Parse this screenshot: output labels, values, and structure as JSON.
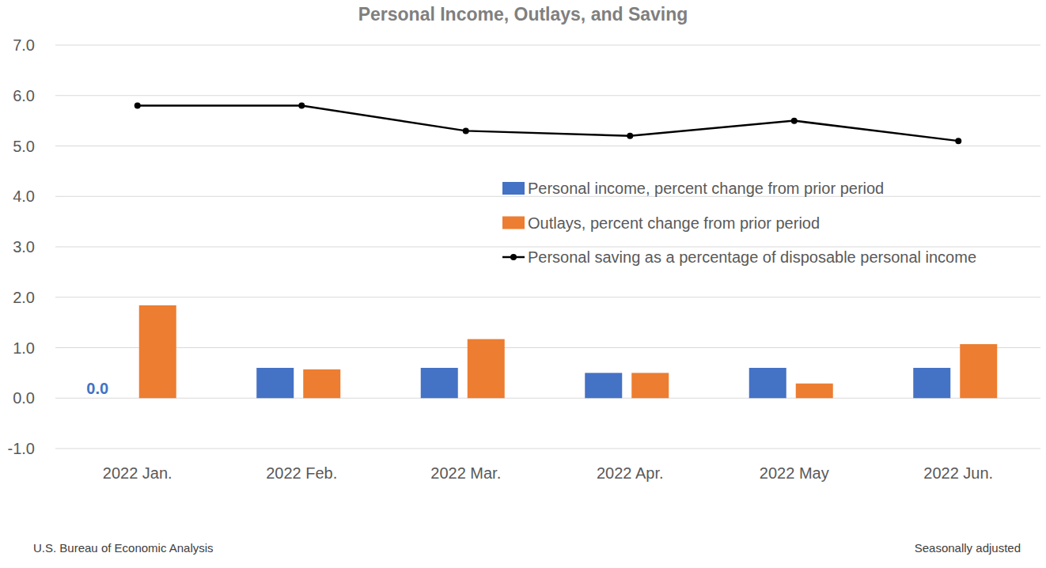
{
  "chart_data": {
    "type": "bar",
    "title": "Personal Income, Outlays, and Saving",
    "source": "U.S. Bureau of Economic Analysis",
    "note": "Seasonally adjusted",
    "categories": [
      "2022 Jan.",
      "2022 Feb.",
      "2022 Mar.",
      "2022 Apr.",
      "2022 May",
      "2022 Jun."
    ],
    "series": [
      {
        "name": "Personal income, percent change from prior period",
        "type": "bar",
        "color": "#4472c4",
        "values": [
          0.0,
          0.6,
          0.6,
          0.5,
          0.6,
          0.6
        ],
        "value_labels": [
          "0.0",
          null,
          null,
          null,
          null,
          null
        ]
      },
      {
        "name": "Outlays, percent change from prior period",
        "type": "bar",
        "color": "#ed7d31",
        "values": [
          1.84,
          0.57,
          1.17,
          0.5,
          0.29,
          1.07
        ]
      },
      {
        "name": "Personal saving as a percentage of disposable personal income",
        "type": "line",
        "color": "#000000",
        "marker": "circle",
        "line_style": "solid",
        "values": [
          5.8,
          5.8,
          5.3,
          5.2,
          5.5,
          5.1
        ]
      }
    ],
    "ylim": [
      -1,
      7
    ],
    "yticks": [
      {
        "value": -1,
        "label": "-1.0"
      },
      {
        "value": 0,
        "label": "0.0"
      },
      {
        "value": 1,
        "label": "1.0"
      },
      {
        "value": 2,
        "label": "2.0"
      },
      {
        "value": 3,
        "label": "3.0"
      },
      {
        "value": 4,
        "label": "4.0"
      },
      {
        "value": 5,
        "label": "5.0"
      },
      {
        "value": 6,
        "label": "6.0"
      },
      {
        "value": 7,
        "label": "7.0"
      }
    ],
    "grid": true,
    "legend": "center-right"
  }
}
